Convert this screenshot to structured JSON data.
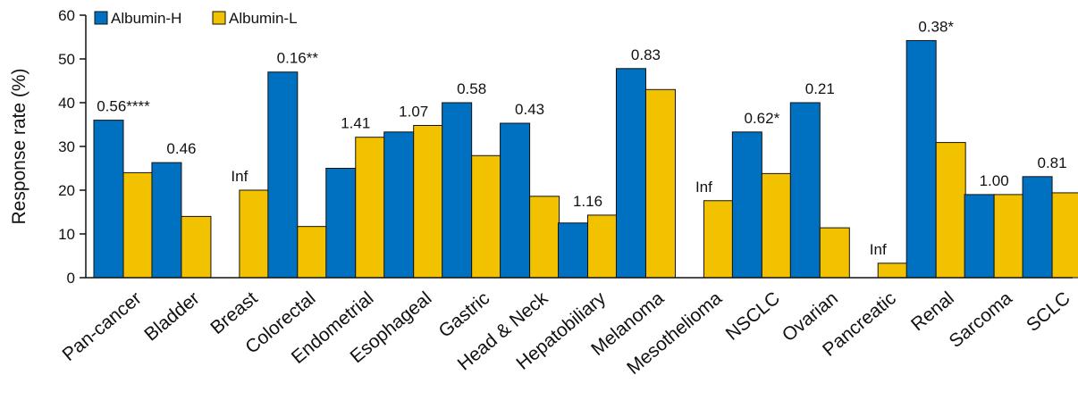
{
  "chart_data": {
    "type": "bar",
    "ylabel": "Response rate (%)",
    "xlabel": "",
    "ylim": [
      0,
      60
    ],
    "yticks": [
      0,
      10,
      20,
      30,
      40,
      50,
      60
    ],
    "grid": false,
    "legend_position": "top-left",
    "categories": [
      "Pan-cancer",
      "Bladder",
      "Breast",
      "Colorectal",
      "Endometrial",
      "Esophageal",
      "Gastric",
      "Head & Neck",
      "Hepatobiliary",
      "Melanoma",
      "Mesothelioma",
      "NSCLC",
      "Ovarian",
      "Pancreatic",
      "Renal",
      "Sarcoma",
      "SCLC"
    ],
    "series": [
      {
        "name": "Albumin-H",
        "color": "#0070C0",
        "values": [
          36,
          26.3,
          0,
          47,
          25,
          33.3,
          40,
          35.3,
          12.5,
          47.8,
          0,
          33.3,
          40,
          0,
          54.2,
          19,
          23.1
        ]
      },
      {
        "name": "Albumin-L",
        "color": "#F2C200",
        "values": [
          24,
          14,
          20,
          11.7,
          32.1,
          34.8,
          27.9,
          18.6,
          14.3,
          43,
          17.6,
          23.8,
          11.4,
          3.3,
          30.9,
          19,
          19.4
        ]
      }
    ],
    "annotations": [
      "0.56****",
      "0.46",
      "Inf",
      "0.16**",
      "1.41",
      "1.07",
      "0.58",
      "0.43",
      "1.16",
      "0.83",
      "Inf",
      "0.62*",
      "0.21",
      "Inf",
      "0.38*",
      "1.00",
      "0.81"
    ]
  }
}
